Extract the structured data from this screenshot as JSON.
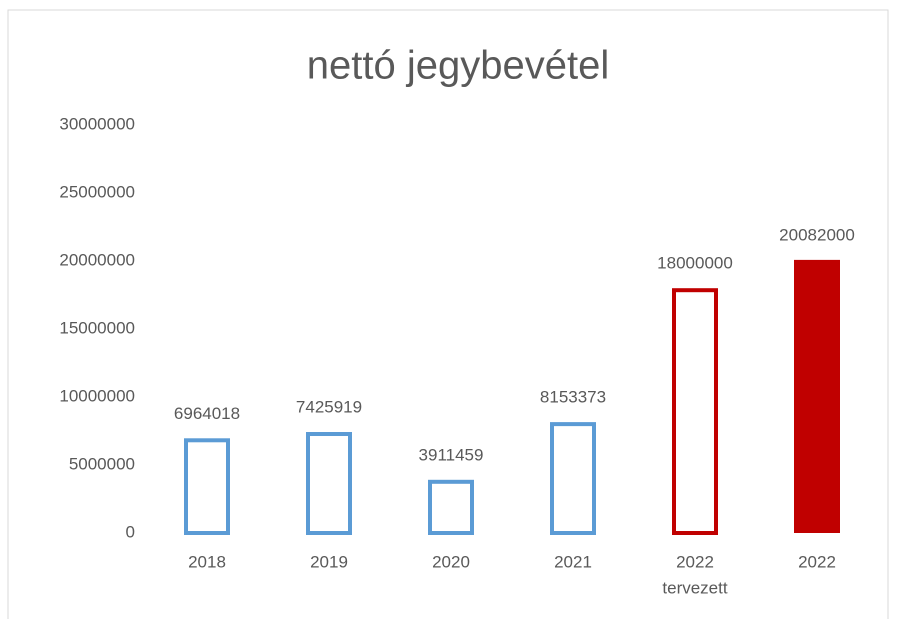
{
  "chart_data": {
    "type": "bar",
    "title": "nettó jegybevétel",
    "categories": [
      [
        "2018"
      ],
      [
        "2019"
      ],
      [
        "2020"
      ],
      [
        "2021"
      ],
      [
        "2022",
        "tervezett"
      ],
      [
        "2022"
      ]
    ],
    "values": [
      6964018,
      7425919,
      3911459,
      8153373,
      18000000,
      20082000
    ],
    "colors": [
      "#5b9bd5",
      "#5b9bd5",
      "#5b9bd5",
      "#5b9bd5",
      "#c00000",
      "#c00000"
    ],
    "filled": [
      false,
      false,
      false,
      false,
      false,
      true
    ],
    "ylim": [
      0,
      30000000
    ],
    "yticks": [
      0,
      5000000,
      10000000,
      15000000,
      20000000,
      25000000,
      30000000
    ],
    "grid": false
  }
}
